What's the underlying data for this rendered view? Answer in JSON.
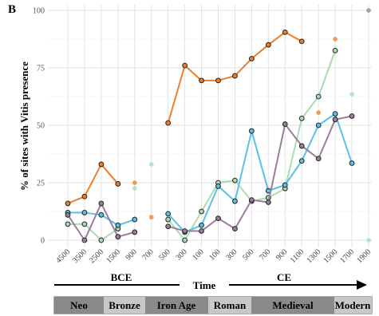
{
  "panel_label": "B",
  "chart_data": {
    "type": "line",
    "title": "",
    "ylabel": "% of sites with Vitis presence",
    "xlabel": "Time",
    "ylim": [
      0,
      100
    ],
    "yticks": [
      0,
      25,
      50,
      75,
      100
    ],
    "x_ticks": [
      "4500",
      "3500",
      "2500",
      "1500",
      "900",
      "700",
      "500",
      "300",
      "100",
      "100",
      "300",
      "500",
      "700",
      "900",
      "1100",
      "1300",
      "1500",
      "1700",
      "1900"
    ],
    "grid": true,
    "legend": "none",
    "era_labels": [
      "BCE",
      "CE"
    ],
    "series": [
      {
        "color": "#f07d28",
        "values": [
          16,
          19,
          33,
          24.5,
          25,
          10,
          51,
          76,
          69.5,
          69.5,
          71.5,
          79,
          85,
          90.5,
          86.5,
          55.5,
          87.5,
          null,
          null
        ],
        "connected": [
          true,
          true,
          true,
          true,
          false,
          false,
          true,
          true,
          true,
          true,
          true,
          true,
          true,
          true,
          true,
          false,
          false,
          false,
          false
        ]
      },
      {
        "color": "#a8dcb4",
        "values": [
          7,
          7,
          0,
          5,
          22.5,
          33,
          9,
          0,
          12.5,
          25,
          26,
          17,
          18.5,
          22.5,
          53,
          62.5,
          82.5,
          63.5,
          0
        ],
        "connected": [
          true,
          true,
          true,
          true,
          false,
          false,
          true,
          true,
          true,
          true,
          true,
          true,
          true,
          true,
          true,
          true,
          true,
          false,
          false
        ]
      },
      {
        "color": "#5bc0e6",
        "values": [
          12,
          12,
          11,
          6.5,
          9,
          null,
          11.5,
          3.5,
          6.5,
          23.5,
          17,
          47.5,
          21.5,
          24,
          34.5,
          50,
          55,
          33.5,
          null
        ],
        "connected": [
          true,
          true,
          true,
          true,
          true,
          false,
          true,
          true,
          true,
          true,
          true,
          true,
          true,
          true,
          true,
          true,
          true,
          true,
          false
        ]
      },
      {
        "color": "#9a7d9a",
        "values": [
          11,
          0,
          16,
          1.5,
          3.5,
          null,
          6,
          4,
          4,
          9.5,
          5,
          17.5,
          16.5,
          50.5,
          41,
          35.5,
          52.5,
          54,
          100
        ],
        "connected": [
          true,
          true,
          true,
          true,
          true,
          false,
          true,
          true,
          true,
          true,
          true,
          true,
          true,
          true,
          true,
          true,
          true,
          true,
          false
        ]
      }
    ]
  },
  "periods": [
    {
      "label": "Neo",
      "shade": "#8a8a8a"
    },
    {
      "label": "Bronze",
      "shade": "#c8c8c8"
    },
    {
      "label": "Iron Age",
      "shade": "#8a8a8a"
    },
    {
      "label": "Roman",
      "shade": "#c8c8c8"
    },
    {
      "label": "Medieval",
      "shade": "#8a8a8a"
    },
    {
      "label": "Modern",
      "shade": "#c8c8c8"
    }
  ]
}
